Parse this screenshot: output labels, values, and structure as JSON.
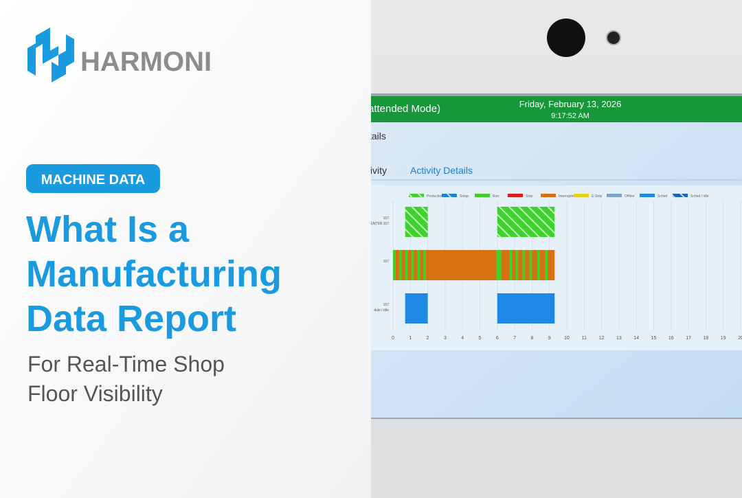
{
  "brand": {
    "name": "HARMONI"
  },
  "tag": "MACHINE DATA",
  "title_lines": [
    "What Is a",
    "Manufacturing",
    "Data Report"
  ],
  "subtitle_lines": [
    "For Real-Time Shop",
    "Floor Visibility"
  ],
  "screen": {
    "mode": "attended Mode)",
    "date": "Friday, February 13, 2026",
    "time": "9:17:52 AM",
    "section": "tails",
    "tabs": [
      "tivity",
      "Activity Details"
    ]
  },
  "chart_data": {
    "type": "gantt",
    "categories": [
      "107",
      "107",
      "107"
    ],
    "category_sublabels": [
      "ENTER 107",
      null,
      "dule / Idle"
    ],
    "xlim": [
      0,
      20
    ],
    "xticks": [
      0,
      1,
      2,
      3,
      4,
      5,
      6,
      7,
      8,
      9,
      10,
      11,
      12,
      13,
      14,
      15,
      16,
      17,
      18,
      19,
      20
    ],
    "grid": true,
    "series": [
      {
        "name": "Production",
        "color": "#3fd22e",
        "hatched": true,
        "values": [
          [
            [
              0.7,
              2.0
            ],
            [
              6.0,
              9.3
            ]
          ],
          [],
          []
        ]
      },
      {
        "name": "Setup",
        "color": "#1e7fe0",
        "hatched": true,
        "values": [
          [],
          [],
          []
        ]
      },
      {
        "name": "Run",
        "color": "#3fd22e",
        "hatched": false,
        "values": [
          [],
          [
            [
              0,
              0.15
            ],
            [
              0.35,
              0.5
            ],
            [
              0.7,
              0.85
            ],
            [
              1.05,
              1.2
            ],
            [
              1.4,
              1.55
            ],
            [
              1.75,
              1.9
            ],
            [
              5.95,
              6.25
            ],
            [
              6.7,
              6.85
            ],
            [
              7.05,
              7.2
            ],
            [
              7.45,
              7.6
            ],
            [
              7.85,
              8.0
            ],
            [
              8.3,
              8.45
            ],
            [
              8.75,
              8.9
            ]
          ],
          []
        ]
      },
      {
        "name": "Stop",
        "color": "#d62020",
        "hatched": false,
        "values": [
          [],
          [],
          []
        ]
      },
      {
        "name": "Interrupted",
        "color": "#d8700f",
        "hatched": false,
        "values": [
          [],
          [
            [
              0,
              9.3
            ]
          ],
          []
        ]
      },
      {
        "name": "E-Stop",
        "color": "#e8d21a",
        "hatched": false,
        "values": [
          [],
          [],
          []
        ]
      },
      {
        "name": "Offline",
        "color": "#7fa0c8",
        "hatched": false,
        "values": [
          [],
          [],
          []
        ]
      },
      {
        "name": "Sched",
        "color": "#1e88e5",
        "hatched": false,
        "values": [
          [],
          [],
          [
            [
              0.7,
              2.0
            ],
            [
              6.0,
              9.3
            ]
          ]
        ]
      },
      {
        "name": "Sched / Idle",
        "color": "#1e5fc0",
        "hatched": true,
        "values": [
          [],
          [],
          []
        ]
      }
    ]
  }
}
